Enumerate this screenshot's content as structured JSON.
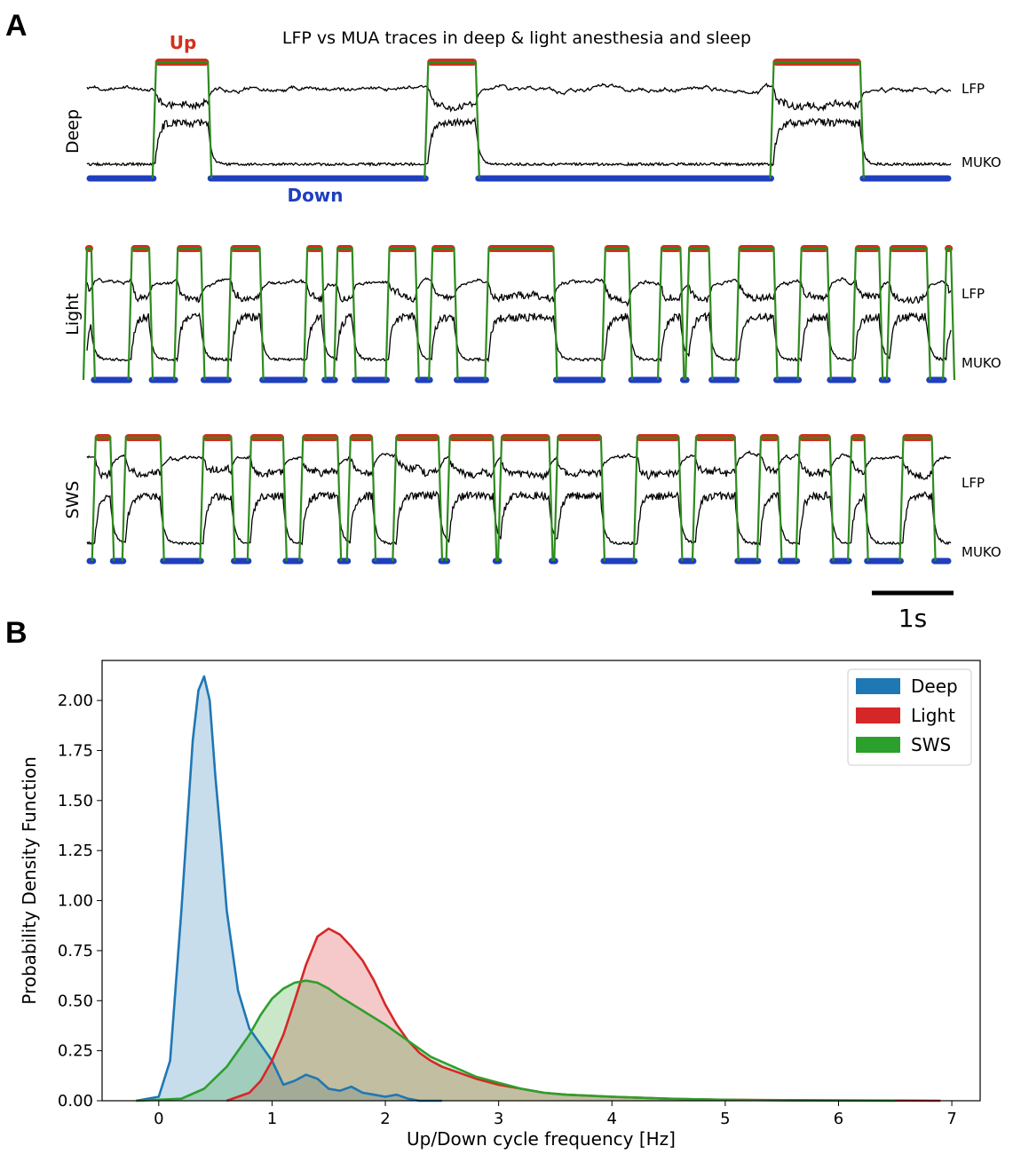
{
  "panel_a_label": "A",
  "panel_b_label": "B",
  "colors": {
    "up_bar": "#d32f1e",
    "down_bar": "#1f3fbf",
    "transition": "#2e8b1e",
    "trace": "#000000",
    "deep": "#1f77b4",
    "light": "#d62728",
    "sws": "#2ca02c"
  },
  "chart_data": [
    {
      "type": "line",
      "title": "LFP vs MUA traces in deep & light anesthesia and sleep",
      "up_label": "Up",
      "down_label": "Down",
      "trace_labels": {
        "lfp": "LFP",
        "mua": "MUKO"
      },
      "scalebar": {
        "label": "1s",
        "duration_s": 1
      },
      "duration_s": 10,
      "rows": [
        {
          "name": "Deep",
          "up_states": [
            [
              0.8,
              1.4
            ],
            [
              3.95,
              4.5
            ],
            [
              7.95,
              8.95
            ]
          ]
        },
        {
          "name": "Light",
          "up_states": [
            [
              0,
              0.05
            ],
            [
              0.52,
              0.72
            ],
            [
              1.05,
              1.32
            ],
            [
              1.67,
              2.0
            ],
            [
              2.55,
              2.72
            ],
            [
              2.9,
              3.07
            ],
            [
              3.5,
              3.8
            ],
            [
              4.0,
              4.25
            ],
            [
              4.65,
              5.4
            ],
            [
              6.0,
              6.27
            ],
            [
              6.65,
              6.87
            ],
            [
              6.97,
              7.2
            ],
            [
              7.55,
              7.95
            ],
            [
              8.27,
              8.57
            ],
            [
              8.9,
              9.17
            ],
            [
              9.3,
              9.72
            ],
            [
              9.95,
              10
            ]
          ]
        },
        {
          "name": "SWS",
          "up_states": [
            [
              0.1,
              0.27
            ],
            [
              0.45,
              0.85
            ],
            [
              1.35,
              1.67
            ],
            [
              1.9,
              2.27
            ],
            [
              2.5,
              2.9
            ],
            [
              3.05,
              3.3
            ],
            [
              3.58,
              4.07
            ],
            [
              4.2,
              4.7
            ],
            [
              4.8,
              5.35
            ],
            [
              5.45,
              5.95
            ],
            [
              6.37,
              6.85
            ],
            [
              7.05,
              7.5
            ],
            [
              7.8,
              8.0
            ],
            [
              8.25,
              8.6
            ],
            [
              8.85,
              9.0
            ],
            [
              9.45,
              9.78
            ]
          ]
        }
      ]
    },
    {
      "type": "area",
      "xlabel": "Up/Down cycle frequency [Hz]",
      "ylabel": "Probability Density Function",
      "xlim": [
        -0.5,
        7.25
      ],
      "ylim": [
        0,
        2.2
      ],
      "xticks": [
        "0",
        "1",
        "2",
        "3",
        "4",
        "5",
        "6",
        "7"
      ],
      "yticks": [
        "0.00",
        "0.25",
        "0.50",
        "0.75",
        "1.00",
        "1.25",
        "1.50",
        "1.75",
        "2.00"
      ],
      "legend_position": "top-right",
      "series": [
        {
          "name": "Deep",
          "x": [
            -0.2,
            0,
            0.1,
            0.2,
            0.3,
            0.35,
            0.4,
            0.45,
            0.5,
            0.55,
            0.6,
            0.7,
            0.8,
            0.9,
            1.0,
            1.1,
            1.2,
            1.3,
            1.4,
            1.5,
            1.6,
            1.7,
            1.8,
            1.9,
            2.0,
            2.1,
            2.2,
            2.3,
            2.5
          ],
          "values": [
            0,
            0.02,
            0.2,
            0.95,
            1.8,
            2.05,
            2.12,
            2.0,
            1.62,
            1.3,
            0.95,
            0.55,
            0.36,
            0.28,
            0.2,
            0.08,
            0.1,
            0.13,
            0.11,
            0.06,
            0.05,
            0.07,
            0.04,
            0.03,
            0.02,
            0.03,
            0.01,
            0.0,
            0
          ]
        },
        {
          "name": "Light",
          "x": [
            0.6,
            0.8,
            0.9,
            1.0,
            1.1,
            1.2,
            1.3,
            1.4,
            1.5,
            1.6,
            1.7,
            1.8,
            1.9,
            2.0,
            2.1,
            2.2,
            2.3,
            2.4,
            2.5,
            2.6,
            2.8,
            3.0,
            3.2,
            3.4,
            3.6,
            4.0,
            4.5,
            5.0,
            5.5,
            6.0,
            6.5,
            6.9
          ],
          "values": [
            0,
            0.04,
            0.1,
            0.2,
            0.33,
            0.5,
            0.68,
            0.82,
            0.86,
            0.83,
            0.77,
            0.7,
            0.6,
            0.48,
            0.38,
            0.3,
            0.24,
            0.2,
            0.17,
            0.15,
            0.11,
            0.08,
            0.06,
            0.04,
            0.03,
            0.02,
            0.01,
            0.005,
            0.003,
            0.002,
            0.001,
            0
          ]
        },
        {
          "name": "SWS",
          "x": [
            -0.2,
            0.2,
            0.4,
            0.6,
            0.8,
            0.9,
            1.0,
            1.1,
            1.2,
            1.3,
            1.4,
            1.5,
            1.6,
            1.8,
            2.0,
            2.2,
            2.4,
            2.6,
            2.8,
            3.0,
            3.2,
            3.4,
            3.6,
            4.0,
            4.5,
            5.0,
            5.5,
            6.0,
            6.5
          ],
          "values": [
            0,
            0.01,
            0.06,
            0.17,
            0.33,
            0.43,
            0.51,
            0.56,
            0.59,
            0.6,
            0.59,
            0.56,
            0.52,
            0.45,
            0.38,
            0.3,
            0.22,
            0.17,
            0.12,
            0.09,
            0.06,
            0.04,
            0.03,
            0.02,
            0.01,
            0.005,
            0.002,
            0.001,
            0
          ]
        }
      ]
    }
  ]
}
